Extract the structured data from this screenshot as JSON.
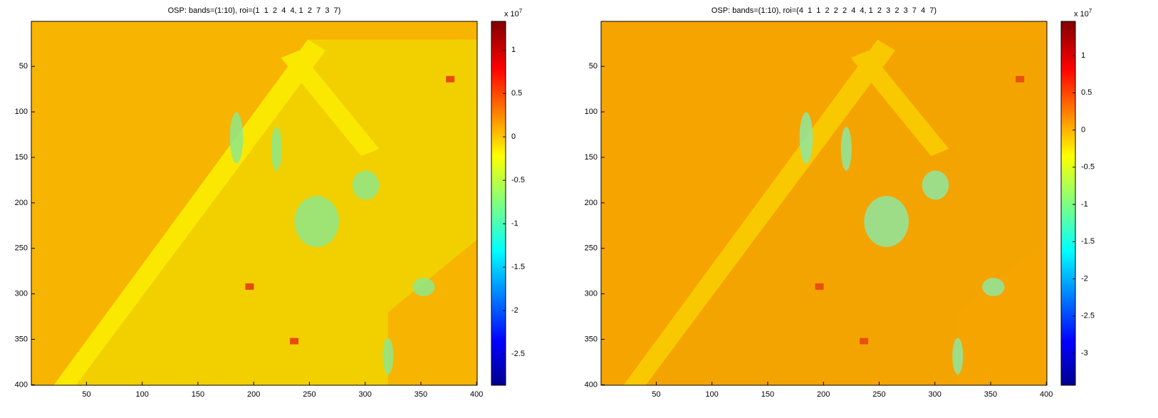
{
  "chart_data": [
    {
      "type": "heatmap",
      "title": "OSP: bands=(1:10), roi=(1  1  2  4  4, 1  2  7  3  7)",
      "xlim": [
        0.5,
        400.5
      ],
      "xticks": [
        50,
        100,
        150,
        200,
        250,
        300,
        350,
        400
      ],
      "ylim": [
        0.5,
        400.5
      ],
      "yticks": [
        50,
        100,
        150,
        200,
        250,
        300,
        350,
        400
      ],
      "y_reversed": true,
      "colormap": "jet",
      "colorbar": {
        "lim": [
          -2.86,
          1.33
        ],
        "ticks": [
          1,
          0.5,
          0,
          -0.5,
          -1,
          -1.5,
          -2,
          -2.5
        ],
        "multiplier": "x 10",
        "exponent": "7"
      }
    },
    {
      "type": "heatmap",
      "title": "OSP: bands=(1:10), roi=(4  1  1  2  2  2  4  4, 1  2  3  2  3  7  4  7)",
      "xlim": [
        0.5,
        400.5
      ],
      "xticks": [
        50,
        100,
        150,
        200,
        250,
        300,
        350,
        400
      ],
      "ylim": [
        0.5,
        400.5
      ],
      "yticks": [
        50,
        100,
        150,
        200,
        250,
        300,
        350,
        400
      ],
      "y_reversed": true,
      "colormap": "jet",
      "colorbar": {
        "lim": [
          -3.43,
          1.46
        ],
        "ticks": [
          1,
          0.5,
          0,
          -0.5,
          -1,
          -1.5,
          -2,
          -2.5,
          -3
        ],
        "multiplier": "x 10",
        "exponent": "7"
      }
    }
  ]
}
